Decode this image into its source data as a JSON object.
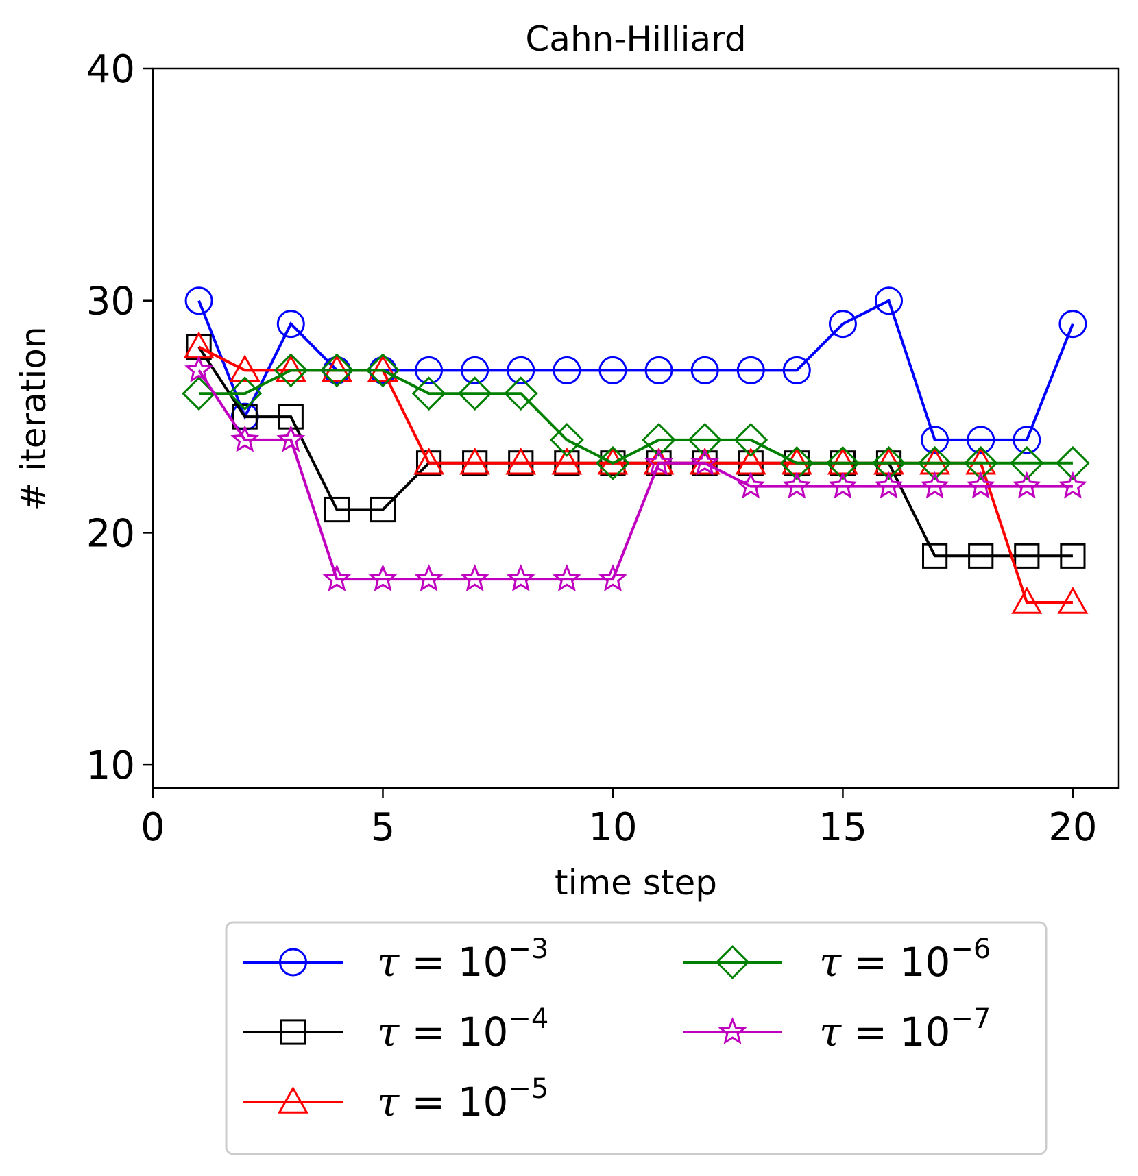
{
  "chart_data": {
    "type": "line",
    "title": "Cahn-Hilliard",
    "xlabel": "time step",
    "ylabel": "# iteration",
    "xlim": [
      0,
      21
    ],
    "ylim": [
      9,
      40
    ],
    "xticks": [
      0,
      5,
      10,
      15,
      20
    ],
    "xtick_labels": [
      "0",
      "5",
      "10",
      "15",
      "20"
    ],
    "yticks": [
      10,
      20,
      30,
      40
    ],
    "ytick_labels": [
      "10",
      "20",
      "30",
      "40"
    ],
    "grid": false,
    "legend_position": "bottom-center",
    "x": [
      1,
      2,
      3,
      4,
      5,
      6,
      7,
      8,
      9,
      10,
      11,
      12,
      13,
      14,
      15,
      16,
      17,
      18,
      19,
      20
    ],
    "series": [
      {
        "name": "τ = 10⁻³",
        "tau": "τ = 10",
        "exponent": "−3",
        "color": "#0000ff",
        "marker": "circle",
        "values": [
          30,
          25,
          29,
          27,
          27,
          27,
          27,
          27,
          27,
          27,
          27,
          27,
          27,
          27,
          29,
          30,
          24,
          24,
          24,
          29
        ]
      },
      {
        "name": "τ = 10⁻⁴",
        "tau": "τ = 10",
        "exponent": "−4",
        "color": "#000000",
        "marker": "square",
        "values": [
          28,
          25,
          25,
          21,
          21,
          23,
          23,
          23,
          23,
          23,
          23,
          23,
          23,
          23,
          23,
          23,
          19,
          19,
          19,
          19
        ]
      },
      {
        "name": "τ = 10⁻⁵",
        "tau": "τ = 10",
        "exponent": "−5",
        "color": "#ff0000",
        "marker": "triangle",
        "values": [
          28,
          27,
          27,
          27,
          27,
          23,
          23,
          23,
          23,
          23,
          23,
          23,
          23,
          23,
          23,
          23,
          23,
          23,
          17,
          17
        ]
      },
      {
        "name": "τ = 10⁻⁶",
        "tau": "τ = 10",
        "exponent": "−6",
        "color": "#008000",
        "marker": "diamond",
        "values": [
          26,
          26,
          27,
          27,
          27,
          26,
          26,
          26,
          24,
          23,
          24,
          24,
          24,
          23,
          23,
          23,
          23,
          23,
          23,
          23
        ]
      },
      {
        "name": "τ = 10⁻⁷",
        "tau": "τ = 10",
        "exponent": "−7",
        "color": "#bf00bf",
        "marker": "star",
        "values": [
          27,
          24,
          24,
          18,
          18,
          18,
          18,
          18,
          18,
          18,
          23,
          23,
          22,
          22,
          22,
          22,
          22,
          22,
          22,
          22
        ]
      }
    ]
  }
}
